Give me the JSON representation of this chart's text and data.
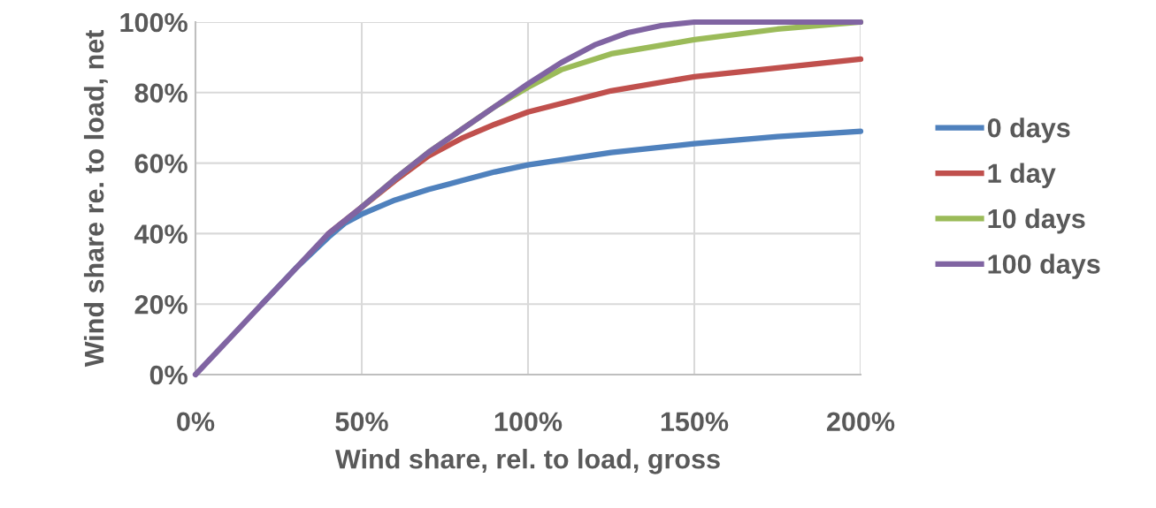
{
  "chart_data": {
    "type": "line",
    "xlabel": "Wind share, rel. to load, gross",
    "ylabel": "Wind share re. to load, net",
    "xlim": [
      0,
      200
    ],
    "ylim": [
      0,
      100
    ],
    "xticks": [
      {
        "value": 0,
        "label": "0%"
      },
      {
        "value": 50,
        "label": "50%"
      },
      {
        "value": 100,
        "label": "100%"
      },
      {
        "value": 150,
        "label": "150%"
      },
      {
        "value": 200,
        "label": "200%"
      }
    ],
    "yticks": [
      {
        "value": 0,
        "label": "0%"
      },
      {
        "value": 20,
        "label": "20%"
      },
      {
        "value": 40,
        "label": "40%"
      },
      {
        "value": 60,
        "label": "60%"
      },
      {
        "value": 80,
        "label": "80%"
      },
      {
        "value": 100,
        "label": "100%"
      }
    ],
    "grid": true,
    "legend": "right",
    "marker": "none",
    "line_style": "solid",
    "series": [
      {
        "name": "0 days",
        "color": "#4f81bd",
        "x": [
          20,
          30,
          40,
          45,
          50,
          60,
          70,
          80,
          90,
          100,
          125,
          150,
          175,
          200
        ],
        "values": [
          20,
          30,
          39,
          43,
          45.5,
          49.5,
          52.5,
          55,
          57.5,
          59.5,
          63,
          65.5,
          67.5,
          69
        ]
      },
      {
        "name": "1 day",
        "color": "#c0504d",
        "x": [
          40,
          50,
          60,
          70,
          80,
          90,
          100,
          125,
          150,
          175,
          200
        ],
        "values": [
          40,
          47.5,
          55,
          62,
          67,
          71,
          74.5,
          80.5,
          84.5,
          87,
          89.5
        ]
      },
      {
        "name": "10 days",
        "color": "#9bbb59",
        "x": [
          50,
          60,
          70,
          80,
          90,
          100,
          110,
          125,
          150,
          175,
          200
        ],
        "values": [
          47.5,
          55.5,
          63,
          69.5,
          76,
          81.5,
          86.5,
          91,
          95,
          98,
          100
        ]
      },
      {
        "name": "100 days",
        "color": "#8064a2",
        "x": [
          0,
          10,
          20,
          30,
          40,
          50,
          60,
          70,
          80,
          90,
          100,
          110,
          120,
          130,
          140,
          150,
          175,
          200
        ],
        "values": [
          0,
          10,
          20,
          30,
          40,
          47.5,
          55.5,
          63,
          69.5,
          76,
          82.5,
          88.5,
          93.5,
          97,
          99,
          100,
          100,
          100
        ]
      }
    ]
  }
}
